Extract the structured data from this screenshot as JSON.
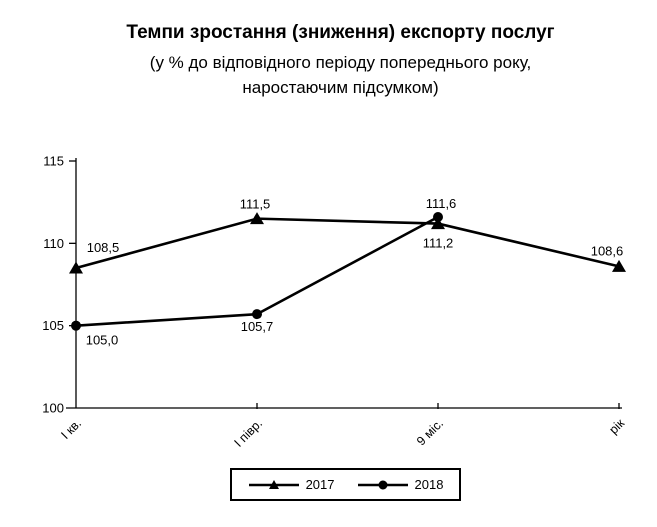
{
  "title": "Темпи зростання (зниження) експорту послуг",
  "subtitle": {
    "line1": "(у % до відповідного періоду попереднього року,",
    "line2": "наростаючим підсумком)"
  },
  "chart_data": {
    "type": "line",
    "categories": [
      "І кв.",
      "І півр.",
      "9 міс.",
      "рік"
    ],
    "series": [
      {
        "name": "2017",
        "marker": "triangle",
        "color": "#000000",
        "values": [
          108.5,
          111.5,
          111.2,
          108.6
        ],
        "point_labels": [
          "108,5",
          "111,5",
          "111,2",
          "108,6"
        ],
        "label_offsets": [
          [
            27,
            -16
          ],
          [
            -2,
            -10
          ],
          [
            0,
            24
          ],
          [
            -12,
            -11
          ]
        ]
      },
      {
        "name": "2018",
        "marker": "circle",
        "color": "#000000",
        "values": [
          105.0,
          105.7,
          111.6,
          null
        ],
        "point_labels": [
          "105,0",
          "105,7",
          "111,6",
          null
        ],
        "label_offsets": [
          [
            26,
            19
          ],
          [
            0,
            17
          ],
          [
            3,
            -9
          ],
          null
        ]
      }
    ],
    "xlabel": "",
    "ylabel": "",
    "ylim": [
      100,
      115
    ],
    "yticks": [
      100,
      105,
      110,
      115
    ],
    "grid": false,
    "legend_position": "bottom-center-boxed",
    "background": "#ffffff",
    "axis_color": "#000000",
    "decimal_separator": ","
  },
  "legend": {
    "items": [
      {
        "label": "2017",
        "marker": "triangle"
      },
      {
        "label": "2018",
        "marker": "circle"
      }
    ]
  }
}
